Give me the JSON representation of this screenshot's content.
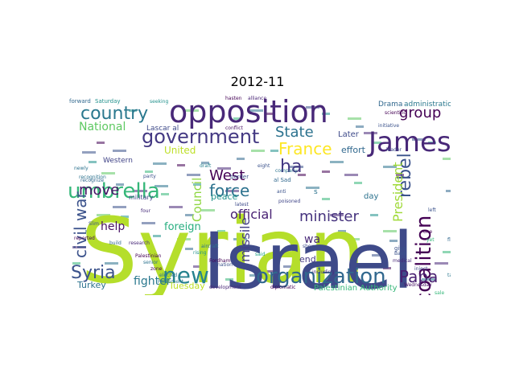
{
  "title": "2012-11",
  "chart_data": {
    "type": "wordcloud",
    "title": "2012-11",
    "words": [
      {
        "text": "Syrian",
        "color": "#b5de2b"
      },
      {
        "text": "Israel",
        "color": "#3e4a89"
      },
      {
        "text": "opposition",
        "color": "#482878"
      },
      {
        "text": "James",
        "color": "#482878"
      },
      {
        "text": "umbrella",
        "color": "#35b779"
      },
      {
        "text": "organization",
        "color": "#31688e"
      },
      {
        "text": "new",
        "color": "#26828e"
      },
      {
        "text": "country",
        "color": "#2a788e"
      },
      {
        "text": "government",
        "color": "#443983"
      },
      {
        "text": "coalition",
        "color": "#440154"
      },
      {
        "text": "civil war",
        "color": "#3b528b"
      },
      {
        "text": "Syria",
        "color": "#3b528b"
      },
      {
        "text": "Papa",
        "color": "#481f70"
      },
      {
        "text": "group",
        "color": "#440154"
      },
      {
        "text": "State",
        "color": "#2c728e"
      },
      {
        "text": "France",
        "color": "#fde725"
      },
      {
        "text": "move",
        "color": "#481467"
      },
      {
        "text": "force",
        "color": "#2c728e"
      },
      {
        "text": "West",
        "color": "#440154"
      },
      {
        "text": "rebel",
        "color": "#3b528b"
      },
      {
        "text": "missile",
        "color": "#433e85"
      },
      {
        "text": "minister",
        "color": "#46337e"
      },
      {
        "text": "official",
        "color": "#482173"
      },
      {
        "text": "ha",
        "color": "#443983"
      },
      {
        "text": "President",
        "color": "#a0da39"
      },
      {
        "text": "National",
        "color": "#5ec962"
      },
      {
        "text": "Council",
        "color": "#90d743"
      },
      {
        "text": "help",
        "color": "#471063"
      },
      {
        "text": "fighter",
        "color": "#2a788e"
      },
      {
        "text": "foreign",
        "color": "#28ae80"
      },
      {
        "text": "United",
        "color": "#bddf26"
      },
      {
        "text": "Turkey",
        "color": "#2c728e"
      },
      {
        "text": "Tuesday",
        "color": "#bddf26"
      },
      {
        "text": "Palestinian Authority",
        "color": "#35b779"
      },
      {
        "text": "peace",
        "color": "#21918c"
      },
      {
        "text": "wa",
        "color": "#482878"
      },
      {
        "text": "end",
        "color": "#443983"
      },
      {
        "text": "effort",
        "color": "#31688e"
      },
      {
        "text": "Later",
        "color": "#3e4a89"
      },
      {
        "text": "day",
        "color": "#2c728e"
      },
      {
        "text": "Drama",
        "color": "#31688e"
      },
      {
        "text": "administration",
        "color": "#2a788e"
      },
      {
        "text": "Western",
        "color": "#414487"
      },
      {
        "text": "military",
        "color": "#404688"
      },
      {
        "text": "Lascar al",
        "color": "#3e4a89"
      },
      {
        "text": "Saturday",
        "color": "#21918c"
      },
      {
        "text": "seeking",
        "color": "#21918c"
      },
      {
        "text": "initiative",
        "color": "#3b528b"
      },
      {
        "text": "Bank",
        "color": "#3b528b"
      },
      {
        "text": "leader",
        "color": "#3e4a89"
      },
      {
        "text": "give",
        "color": "#3b528b"
      },
      {
        "text": "said",
        "color": "#20a486"
      },
      {
        "text": "development",
        "color": "#482677"
      },
      {
        "text": "diplomatic",
        "color": "#440154"
      },
      {
        "text": "Palestinian",
        "color": "#440154"
      },
      {
        "text": "reported",
        "color": "#440154"
      },
      {
        "text": "conflict",
        "color": "#471063"
      },
      {
        "text": "border",
        "color": "#3b528b"
      },
      {
        "text": "Slim",
        "color": "#3b528b"
      },
      {
        "text": "build",
        "color": "#31688e"
      },
      {
        "text": "research",
        "color": "#482878"
      },
      {
        "text": "senior",
        "color": "#2c728e"
      },
      {
        "text": "zone",
        "color": "#440154"
      },
      {
        "text": "recognize",
        "color": "#31688e"
      },
      {
        "text": "newly",
        "color": "#2c728e"
      },
      {
        "text": "party",
        "color": "#3b528b"
      },
      {
        "text": "four",
        "color": "#472d7b"
      },
      {
        "text": "including",
        "color": "#472d7b"
      },
      {
        "text": "fly",
        "color": "#31688e"
      },
      {
        "text": "talk",
        "color": "#2a788e"
      },
      {
        "text": "Wednesday",
        "color": "#471063"
      },
      {
        "text": "company",
        "color": "#2c728e"
      },
      {
        "text": "one",
        "color": "#440154"
      },
      {
        "text": "left",
        "color": "#3b528b"
      },
      {
        "text": "yet",
        "color": "#35b779"
      },
      {
        "text": "Parliament",
        "color": "#2a788e"
      },
      {
        "text": "al Sad",
        "color": "#31688e"
      },
      {
        "text": "s",
        "color": "#2c728e"
      },
      {
        "text": "hasten",
        "color": "#440154"
      },
      {
        "text": "alliance",
        "color": "#482475"
      },
      {
        "text": "recognition",
        "color": "#2c728e"
      },
      {
        "text": "latest",
        "color": "#3e4a89"
      },
      {
        "text": "inject",
        "color": "#3e4a89"
      },
      {
        "text": "show",
        "color": "#3e4a89"
      },
      {
        "text": "medical",
        "color": "#482878"
      },
      {
        "text": "scientific",
        "color": "#440154"
      },
      {
        "text": "Fordham",
        "color": "#440154"
      },
      {
        "text": "anti",
        "color": "#3b528b"
      },
      {
        "text": "poisoned",
        "color": "#404688"
      },
      {
        "text": "elected",
        "color": "#2c728e"
      },
      {
        "text": "nation",
        "color": "#3b528b"
      },
      {
        "text": "rising",
        "color": "#21918c"
      },
      {
        "text": "aircraft",
        "color": "#2c728e"
      },
      {
        "text": "eight",
        "color": "#3b528b"
      },
      {
        "text": "draft",
        "color": "#26828e"
      },
      {
        "text": "forward",
        "color": "#31688e"
      },
      {
        "text": "sale",
        "color": "#35b779"
      }
    ]
  }
}
